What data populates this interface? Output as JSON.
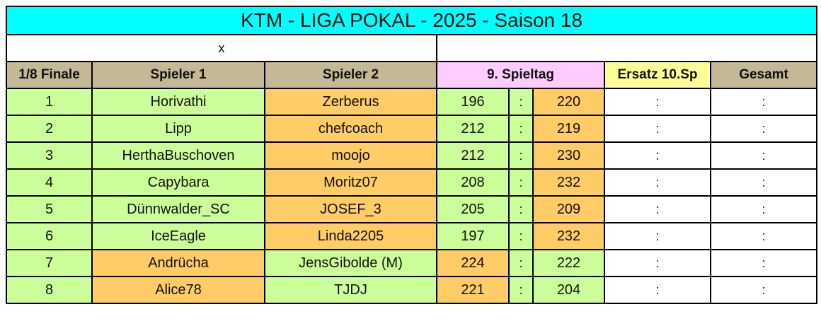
{
  "title": "KTM - LIGA  POKAL  - 2025 - Saison 18",
  "sub": {
    "left": "x",
    "right": ""
  },
  "headers": {
    "round": "1/8 Finale",
    "player1": "Spieler 1",
    "player2": "Spieler 2",
    "matchday": "9. Spieltag",
    "substitute": "Ersatz 10.Sp",
    "total": "Gesamt"
  },
  "separator": ":",
  "rows": [
    {
      "no": "1",
      "p1": "Horivathi",
      "p2": "Zerberus",
      "s1": "196",
      "s2": "220",
      "winner": 2
    },
    {
      "no": "2",
      "p1": "Lipp",
      "p2": "chefcoach",
      "s1": "212",
      "s2": "219",
      "winner": 2
    },
    {
      "no": "3",
      "p1": "HerthaBuschoven",
      "p2": "moojo",
      "s1": "212",
      "s2": "230",
      "winner": 2
    },
    {
      "no": "4",
      "p1": "Capybara",
      "p2": "Moritz07",
      "s1": "208",
      "s2": "232",
      "winner": 2
    },
    {
      "no": "5",
      "p1": "Dünnwalder_SC",
      "p2": "JOSEF_3",
      "s1": "205",
      "s2": "209",
      "winner": 2
    },
    {
      "no": "6",
      "p1": "IceEagle",
      "p2": "Linda2205",
      "s1": "197",
      "s2": "232",
      "winner": 2
    },
    {
      "no": "7",
      "p1": "Andrücha",
      "p2": "JensGibolde (M)",
      "s1": "224",
      "s2": "222",
      "winner": 1
    },
    {
      "no": "8",
      "p1": "Alice78",
      "p2": "TJDJ",
      "s1": "221",
      "s2": "204",
      "winner": 1
    }
  ],
  "colors": {
    "title_bg": "#00ffff",
    "header_bg": "#c4b896",
    "matchday_bg": "#ffccff",
    "substitute_bg": "#ffff99",
    "winner_bg": "#ffcc66",
    "loser_bg": "#ccff99"
  }
}
